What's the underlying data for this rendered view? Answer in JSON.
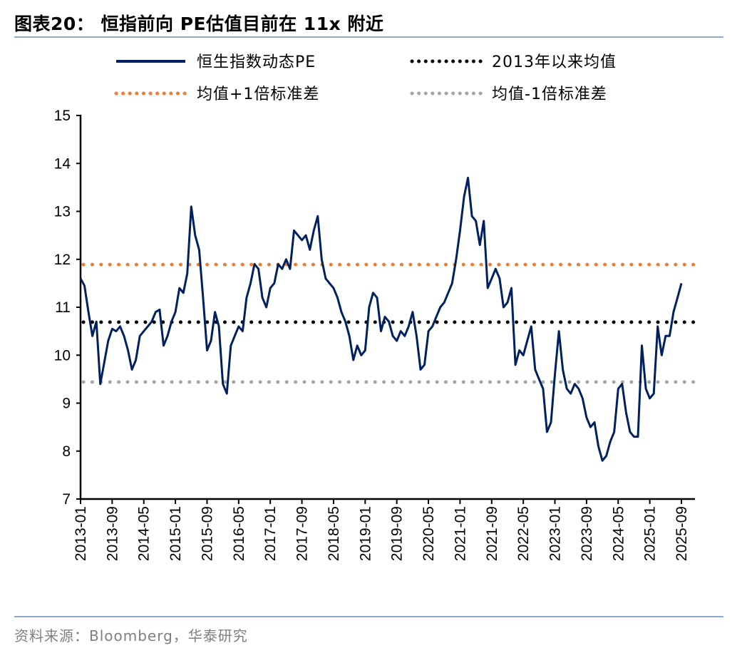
{
  "title": "图表20：  恒指前向 PE估值目前在 11x 附近",
  "footer": "资料来源：Bloomberg，华泰研究",
  "colors": {
    "series": "#002060",
    "mean": "#000000",
    "plus1": "#ED7D31",
    "minus1": "#A5A5A5",
    "rule": "#8EA9C8"
  },
  "chart_data": {
    "type": "line",
    "title": "",
    "xlabel": "",
    "ylabel": "",
    "ylim": [
      7,
      15
    ],
    "yticks": [
      7,
      8,
      9,
      10,
      11,
      12,
      13,
      14,
      15
    ],
    "xticks": [
      "2013-01",
      "2013-09",
      "2014-05",
      "2015-01",
      "2015-09",
      "2016-05",
      "2017-01",
      "2017-09",
      "2018-05",
      "2019-01",
      "2019-09",
      "2020-05",
      "2021-01",
      "2021-09",
      "2022-05",
      "2023-01",
      "2023-09",
      "2024-05",
      "2025-01",
      "2025-09"
    ],
    "grid": false,
    "legend_placement": "top",
    "series": [
      {
        "name": "恒生指数动态PE",
        "style": "solid",
        "color": "#002060",
        "x": [
          "2013-01",
          "2013-02",
          "2013-03",
          "2013-04",
          "2013-05",
          "2013-06",
          "2013-07",
          "2013-08",
          "2013-09",
          "2013-10",
          "2013-11",
          "2013-12",
          "2014-01",
          "2014-02",
          "2014-03",
          "2014-04",
          "2014-05",
          "2014-06",
          "2014-07",
          "2014-08",
          "2014-09",
          "2014-10",
          "2014-11",
          "2014-12",
          "2015-01",
          "2015-02",
          "2015-03",
          "2015-04",
          "2015-05",
          "2015-06",
          "2015-07",
          "2015-08",
          "2015-09",
          "2015-10",
          "2015-11",
          "2015-12",
          "2016-01",
          "2016-02",
          "2016-03",
          "2016-04",
          "2016-05",
          "2016-06",
          "2016-07",
          "2016-08",
          "2016-09",
          "2016-10",
          "2016-11",
          "2016-12",
          "2017-01",
          "2017-02",
          "2017-03",
          "2017-04",
          "2017-05",
          "2017-06",
          "2017-07",
          "2017-08",
          "2017-09",
          "2017-10",
          "2017-11",
          "2017-12",
          "2018-01",
          "2018-02",
          "2018-03",
          "2018-04",
          "2018-05",
          "2018-06",
          "2018-07",
          "2018-08",
          "2018-09",
          "2018-10",
          "2018-11",
          "2018-12",
          "2019-01",
          "2019-02",
          "2019-03",
          "2019-04",
          "2019-05",
          "2019-06",
          "2019-07",
          "2019-08",
          "2019-09",
          "2019-10",
          "2019-11",
          "2019-12",
          "2020-01",
          "2020-02",
          "2020-03",
          "2020-04",
          "2020-05",
          "2020-06",
          "2020-07",
          "2020-08",
          "2020-09",
          "2020-10",
          "2020-11",
          "2020-12",
          "2021-01",
          "2021-02",
          "2021-03",
          "2021-04",
          "2021-05",
          "2021-06",
          "2021-07",
          "2021-08",
          "2021-09",
          "2021-10",
          "2021-11",
          "2021-12",
          "2022-01",
          "2022-02",
          "2022-03",
          "2022-04",
          "2022-05",
          "2022-06",
          "2022-07",
          "2022-08",
          "2022-09",
          "2022-10",
          "2022-11",
          "2022-12",
          "2023-01",
          "2023-02",
          "2023-03",
          "2023-04",
          "2023-05",
          "2023-06",
          "2023-07",
          "2023-08",
          "2023-09",
          "2023-10",
          "2023-11",
          "2023-12",
          "2024-01",
          "2024-02",
          "2024-03",
          "2024-04",
          "2024-05",
          "2024-06",
          "2024-07",
          "2024-08",
          "2024-09",
          "2024-10",
          "2024-11",
          "2024-12",
          "2025-01",
          "2025-02",
          "2025-03",
          "2025-04",
          "2025-05",
          "2025-06",
          "2025-07",
          "2025-08",
          "2025-09"
        ],
        "values": [
          11.6,
          11.45,
          10.9,
          10.4,
          10.7,
          9.4,
          9.85,
          10.3,
          10.55,
          10.5,
          10.6,
          10.4,
          10.1,
          9.7,
          9.9,
          10.4,
          10.5,
          10.6,
          10.7,
          10.9,
          10.95,
          10.2,
          10.4,
          10.7,
          10.9,
          11.4,
          11.3,
          11.7,
          13.1,
          12.5,
          12.2,
          11.2,
          10.1,
          10.3,
          10.9,
          10.6,
          9.4,
          9.2,
          10.2,
          10.4,
          10.6,
          10.5,
          11.2,
          11.5,
          11.9,
          11.8,
          11.2,
          11.0,
          11.4,
          11.5,
          11.9,
          11.8,
          12.0,
          11.8,
          12.6,
          12.5,
          12.4,
          12.5,
          12.2,
          12.6,
          12.9,
          12.0,
          11.6,
          11.5,
          11.4,
          11.2,
          10.9,
          10.7,
          10.4,
          9.9,
          10.2,
          10.0,
          10.1,
          11.0,
          11.3,
          11.2,
          10.5,
          10.8,
          10.7,
          10.4,
          10.3,
          10.5,
          10.4,
          10.6,
          10.9,
          10.4,
          9.7,
          9.8,
          10.5,
          10.6,
          10.8,
          11.0,
          11.1,
          11.3,
          11.5,
          12.0,
          12.6,
          13.3,
          13.7,
          12.9,
          12.8,
          12.3,
          12.8,
          11.4,
          11.6,
          11.8,
          11.6,
          11.0,
          11.1,
          11.4,
          9.8,
          10.1,
          10.0,
          10.3,
          10.6,
          9.7,
          9.5,
          9.3,
          8.4,
          8.6,
          9.6,
          10.5,
          9.7,
          9.3,
          9.2,
          9.4,
          9.3,
          9.1,
          8.7,
          8.5,
          8.6,
          8.1,
          7.8,
          7.9,
          8.2,
          8.4,
          9.3,
          9.4,
          8.8,
          8.4,
          8.3,
          8.3,
          10.2,
          9.3,
          9.1,
          9.2,
          10.6,
          10.0,
          10.4,
          10.4,
          10.9,
          11.2,
          11.5
        ]
      },
      {
        "name": "2013年以来均值",
        "style": "dotted",
        "color": "#000000",
        "value": 10.69
      },
      {
        "name": "均值+1倍标准差",
        "style": "dotted",
        "color": "#ED7D31",
        "value": 11.89
      },
      {
        "name": "均值-1倍标准差",
        "style": "dotted",
        "color": "#A5A5A5",
        "value": 9.44
      }
    ]
  }
}
